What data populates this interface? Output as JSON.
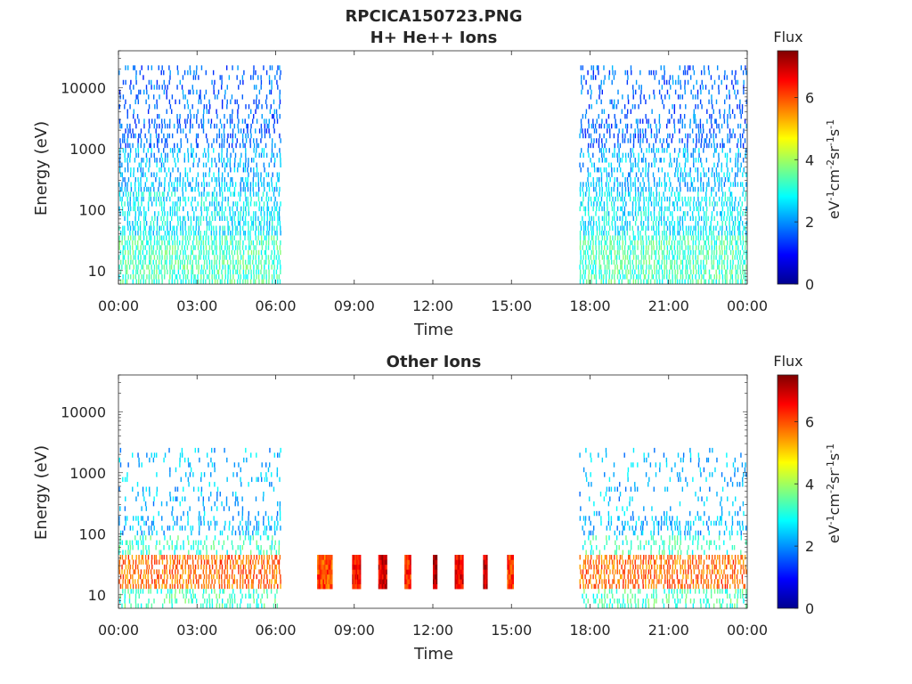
{
  "figure": {
    "title": "RPCICA150723.PNG"
  },
  "chart_data": [
    {
      "type": "heatmap",
      "title": "H+ He++ Ions",
      "xlabel": "Time",
      "ylabel": "Energy (eV)",
      "x_ticks": [
        "00:00",
        "03:00",
        "06:00",
        "09:00",
        "12:00",
        "15:00",
        "18:00",
        "21:00",
        "00:00"
      ],
      "y_scale": "log",
      "y_ticks": [
        "10",
        "100",
        "1000",
        "10000"
      ],
      "ylim": [
        6,
        40000
      ],
      "colorbar": {
        "title": "Flux",
        "label_base": "eV",
        "label_parts": [
          "-1",
          "cm",
          "-2",
          "sr",
          "-1",
          "s",
          "-1"
        ],
        "ticks": [
          "0",
          "2",
          "4",
          "6"
        ],
        "range": [
          0,
          7.5
        ],
        "colormap": "jet"
      },
      "data_intervals": [
        {
          "start": "00:00",
          "end": "06:10"
        },
        {
          "start": "17:35",
          "end": "23:55"
        }
      ],
      "background_color": "#ffffff"
    },
    {
      "type": "heatmap",
      "title": "Other Ions",
      "xlabel": "Time",
      "ylabel": "Energy (eV)",
      "x_ticks": [
        "00:00",
        "03:00",
        "06:00",
        "09:00",
        "12:00",
        "15:00",
        "18:00",
        "21:00",
        "00:00"
      ],
      "y_scale": "log",
      "y_ticks": [
        "10",
        "100",
        "1000",
        "10000"
      ],
      "ylim": [
        6,
        40000
      ],
      "colorbar": {
        "title": "Flux",
        "label_base": "eV",
        "label_parts": [
          "-1",
          "cm",
          "-2",
          "sr",
          "-1",
          "s",
          "-1"
        ],
        "ticks": [
          "0",
          "2",
          "4",
          "6"
        ],
        "range": [
          0,
          7.5
        ],
        "colormap": "jet"
      },
      "data_intervals": [
        {
          "start": "00:00",
          "end": "06:10"
        },
        {
          "start": "17:35",
          "end": "23:55"
        }
      ],
      "bursts": [
        {
          "start": "07:35",
          "end": "08:10",
          "flux": 6.0
        },
        {
          "start": "08:55",
          "end": "09:15",
          "flux": 6.5
        },
        {
          "start": "09:55",
          "end": "10:15",
          "flux": 6.8
        },
        {
          "start": "10:55",
          "end": "11:10",
          "flux": 6.3
        },
        {
          "start": "12:00",
          "end": "12:10",
          "flux": 7.2
        },
        {
          "start": "12:50",
          "end": "13:10",
          "flux": 6.6
        },
        {
          "start": "13:55",
          "end": "14:05",
          "flux": 6.9
        },
        {
          "start": "14:50",
          "end": "15:05",
          "flux": 6.2
        }
      ],
      "burst_energy_range": [
        13,
        45
      ],
      "background_color": "#ffffff"
    }
  ]
}
